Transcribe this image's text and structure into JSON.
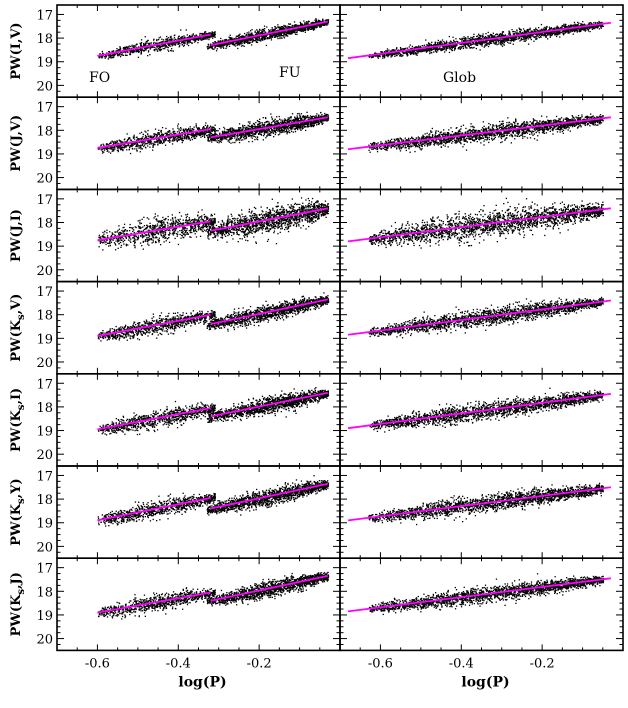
{
  "chart_data": {
    "type": "scatter",
    "columns": [
      {
        "id": "left",
        "x": [
          -0.6,
          -0.4,
          -0.2
        ],
        "x_tick_labels": [
          "-0.6",
          "-0.4",
          "-0.2"
        ],
        "xlim": [
          -0.7,
          0
        ]
      },
      {
        "id": "right",
        "x": [
          -0.6,
          -0.4,
          -0.2
        ],
        "x_tick_labels": [
          "-0.6",
          "-0.4",
          "-0.2"
        ],
        "xlim": [
          -0.7,
          0
        ]
      }
    ],
    "xlabel": "log(P)",
    "ylim": [
      20.5,
      16.6
    ],
    "y_inverted": true,
    "y_ticks": [
      17,
      18,
      19,
      20
    ],
    "y_tick_labels": [
      "17",
      "18",
      "19",
      "20"
    ],
    "point_color": "#000000",
    "line_color": "#ff00ff",
    "annotations": {
      "fo": "FO",
      "fu": "FU",
      "glob": "Glob"
    },
    "panels": [
      {
        "row": 0,
        "ylabel_main": "PW(I,V)",
        "ylabel_sub": "",
        "ylabel_tail": "",
        "left": {
          "fo_line": {
            "x": [
              -0.6,
              -0.32
            ],
            "y": [
              18.75,
              17.85
            ]
          },
          "fu_line": {
            "x": [
              -0.32,
              -0.03
            ],
            "y": [
              18.3,
              17.3
            ]
          }
        },
        "right": {
          "line": {
            "x": [
              -0.68,
              -0.03
            ],
            "y": [
              18.85,
              17.35
            ]
          }
        }
      },
      {
        "row": 1,
        "ylabel_main": "PW(J,V)",
        "ylabel_sub": "",
        "ylabel_tail": "",
        "left": {
          "fo_line": {
            "x": [
              -0.6,
              -0.32
            ],
            "y": [
              18.75,
              17.95
            ]
          },
          "fu_line": {
            "x": [
              -0.32,
              -0.03
            ],
            "y": [
              18.3,
              17.45
            ]
          }
        },
        "right": {
          "line": {
            "x": [
              -0.68,
              -0.03
            ],
            "y": [
              18.8,
              17.45
            ]
          }
        }
      },
      {
        "row": 2,
        "ylabel_main": "PW(J,I)",
        "ylabel_sub": "",
        "ylabel_tail": "",
        "left": {
          "fo_line": {
            "x": [
              -0.6,
              -0.32
            ],
            "y": [
              18.75,
              17.95
            ]
          },
          "fu_line": {
            "x": [
              -0.32,
              -0.03
            ],
            "y": [
              18.35,
              17.4
            ]
          }
        },
        "right": {
          "line": {
            "x": [
              -0.68,
              -0.03
            ],
            "y": [
              18.8,
              17.4
            ]
          }
        }
      },
      {
        "row": 3,
        "ylabel_main": "PW(K",
        "ylabel_sub": "s",
        "ylabel_tail": ",V)",
        "left": {
          "fo_line": {
            "x": [
              -0.6,
              -0.32
            ],
            "y": [
              18.9,
              18.0
            ]
          },
          "fu_line": {
            "x": [
              -0.32,
              -0.03
            ],
            "y": [
              18.4,
              17.35
            ]
          }
        },
        "right": {
          "line": {
            "x": [
              -0.68,
              -0.03
            ],
            "y": [
              18.85,
              17.4
            ]
          }
        }
      },
      {
        "row": 4,
        "ylabel_main": "PW(K",
        "ylabel_sub": "s",
        "ylabel_tail": ",I)",
        "left": {
          "fo_line": {
            "x": [
              -0.6,
              -0.32
            ],
            "y": [
              18.95,
              18.05
            ]
          },
          "fu_line": {
            "x": [
              -0.32,
              -0.03
            ],
            "y": [
              18.4,
              17.4
            ]
          }
        },
        "right": {
          "line": {
            "x": [
              -0.68,
              -0.03
            ],
            "y": [
              18.9,
              17.45
            ]
          }
        }
      },
      {
        "row": 5,
        "ylabel_main": "PW(K",
        "ylabel_sub": "s",
        "ylabel_tail": ",Y)",
        "left": {
          "fo_line": {
            "x": [
              -0.6,
              -0.32
            ],
            "y": [
              18.9,
              17.95
            ]
          },
          "fu_line": {
            "x": [
              -0.32,
              -0.03
            ],
            "y": [
              18.4,
              17.35
            ]
          }
        },
        "right": {
          "line": {
            "x": [
              -0.68,
              -0.03
            ],
            "y": [
              18.9,
              17.5
            ]
          }
        }
      },
      {
        "row": 6,
        "ylabel_main": "PW(K",
        "ylabel_sub": "s",
        "ylabel_tail": ",J)",
        "left": {
          "fo_line": {
            "x": [
              -0.6,
              -0.32
            ],
            "y": [
              18.9,
              18.05
            ]
          },
          "fu_line": {
            "x": [
              -0.32,
              -0.03
            ],
            "y": [
              18.4,
              17.35
            ]
          }
        },
        "right": {
          "line": {
            "x": [
              -0.68,
              -0.03
            ],
            "y": [
              18.85,
              17.45
            ]
          }
        }
      }
    ]
  }
}
